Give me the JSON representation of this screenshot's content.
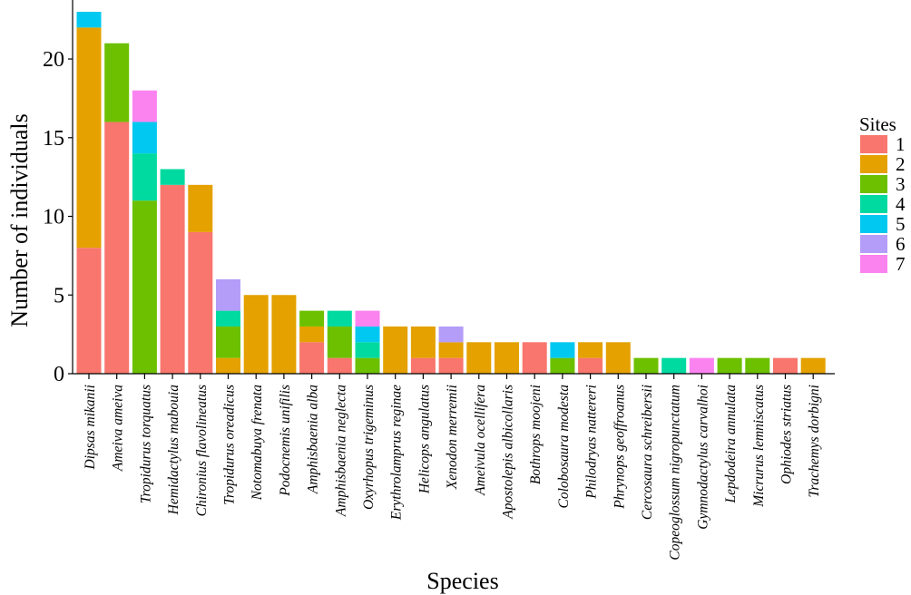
{
  "chart_data": {
    "type": "bar",
    "stacked": true,
    "xlabel": "Species",
    "ylabel": "Number of individuals",
    "ylim": [
      0,
      23
    ],
    "y_ticks": [
      0,
      5,
      10,
      15,
      20
    ],
    "grid": false,
    "legend": {
      "title": "Sites",
      "placement": "right"
    },
    "categories": [
      "Dipsas mikanii",
      "Ameiva ameiva",
      "Tropidurus torquatus",
      "Hemidactylus mabouia",
      "Chironius flavolineatus",
      "Tropidurus oreadicus",
      "Notomabuya frenata",
      "Podocnemis unifilis",
      "Amphisbaenia alba",
      "Amphisbaenia neglecta",
      "Oxyrhopus trigeminus",
      "Erythrolamprus reginae",
      "Helicops angulatus",
      "Xenodon merremii",
      "Ameivula ocellifera",
      "Apostolepis albicollaris",
      "Bothrops moojeni",
      "Colobosaura modesta",
      "Philodryas nattereri",
      "Phrynops geoffroanus",
      "Cercosaura schreibersii",
      "Copeoglossum nigropunctatum",
      "Gymnodactylus carvalhoi",
      "Lepdodeira annulata",
      "Micrurus lemniscatus",
      "Ophiodes striatus",
      "Trachemys dorbigni"
    ],
    "series": [
      {
        "name": "1",
        "color": "#F8766D",
        "values": [
          8,
          16,
          0,
          12,
          9,
          0,
          0,
          0,
          2,
          1,
          0,
          0,
          1,
          1,
          0,
          0,
          2,
          0,
          1,
          0,
          0,
          0,
          0,
          0,
          0,
          1,
          0
        ]
      },
      {
        "name": "2",
        "color": "#E4A100",
        "values": [
          14,
          0,
          0,
          0,
          3,
          1,
          5,
          5,
          1,
          0,
          0,
          3,
          2,
          1,
          2,
          2,
          0,
          0,
          1,
          2,
          0,
          0,
          0,
          0,
          0,
          0,
          1
        ]
      },
      {
        "name": "3",
        "color": "#6CC000",
        "values": [
          0,
          5,
          11,
          0,
          0,
          2,
          0,
          0,
          1,
          2,
          1,
          0,
          0,
          0,
          0,
          0,
          0,
          1,
          0,
          0,
          1,
          0,
          0,
          1,
          1,
          0,
          0
        ]
      },
      {
        "name": "4",
        "color": "#00D9A0",
        "values": [
          0,
          0,
          3,
          1,
          0,
          1,
          0,
          0,
          0,
          1,
          1,
          0,
          0,
          0,
          0,
          0,
          0,
          0,
          0,
          0,
          0,
          1,
          0,
          0,
          0,
          0,
          0
        ]
      },
      {
        "name": "5",
        "color": "#00C8F0",
        "values": [
          1,
          0,
          2,
          0,
          0,
          0,
          0,
          0,
          0,
          0,
          1,
          0,
          0,
          0,
          0,
          0,
          0,
          1,
          0,
          0,
          0,
          0,
          0,
          0,
          0,
          0,
          0
        ]
      },
      {
        "name": "6",
        "color": "#B39DF8",
        "values": [
          0,
          0,
          0,
          0,
          0,
          2,
          0,
          0,
          0,
          0,
          0,
          0,
          0,
          1,
          0,
          0,
          0,
          0,
          0,
          0,
          0,
          0,
          0,
          0,
          0,
          0,
          0
        ]
      },
      {
        "name": "7",
        "color": "#FB83F0",
        "values": [
          0,
          0,
          2,
          0,
          0,
          0,
          0,
          0,
          0,
          0,
          1,
          0,
          0,
          0,
          0,
          0,
          0,
          0,
          0,
          0,
          0,
          0,
          1,
          0,
          0,
          0,
          0
        ]
      }
    ]
  }
}
